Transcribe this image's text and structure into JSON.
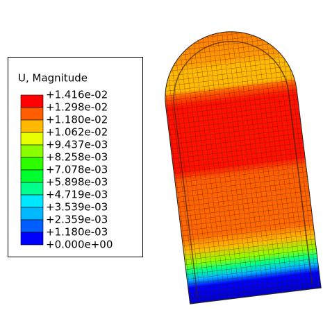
{
  "legend": {
    "title": "U, Magnitude",
    "labels": [
      "+1.416e-02",
      "+1.298e-02",
      "+1.180e-02",
      "+1.062e-02",
      "+9.437e-03",
      "+8.258e-03",
      "+7.078e-03",
      "+5.898e-03",
      "+4.719e-03",
      "+3.539e-03",
      "+2.359e-03",
      "+1.180e-03",
      "+0.000e+00"
    ],
    "colors": [
      "#ff0000",
      "#ff5d00",
      "#ffb900",
      "#e8ff00",
      "#8bff00",
      "#2eff00",
      "#00ff2e",
      "#00ff8b",
      "#00e8ff",
      "#00b9ff",
      "#005dff",
      "#0000ff"
    ]
  }
}
